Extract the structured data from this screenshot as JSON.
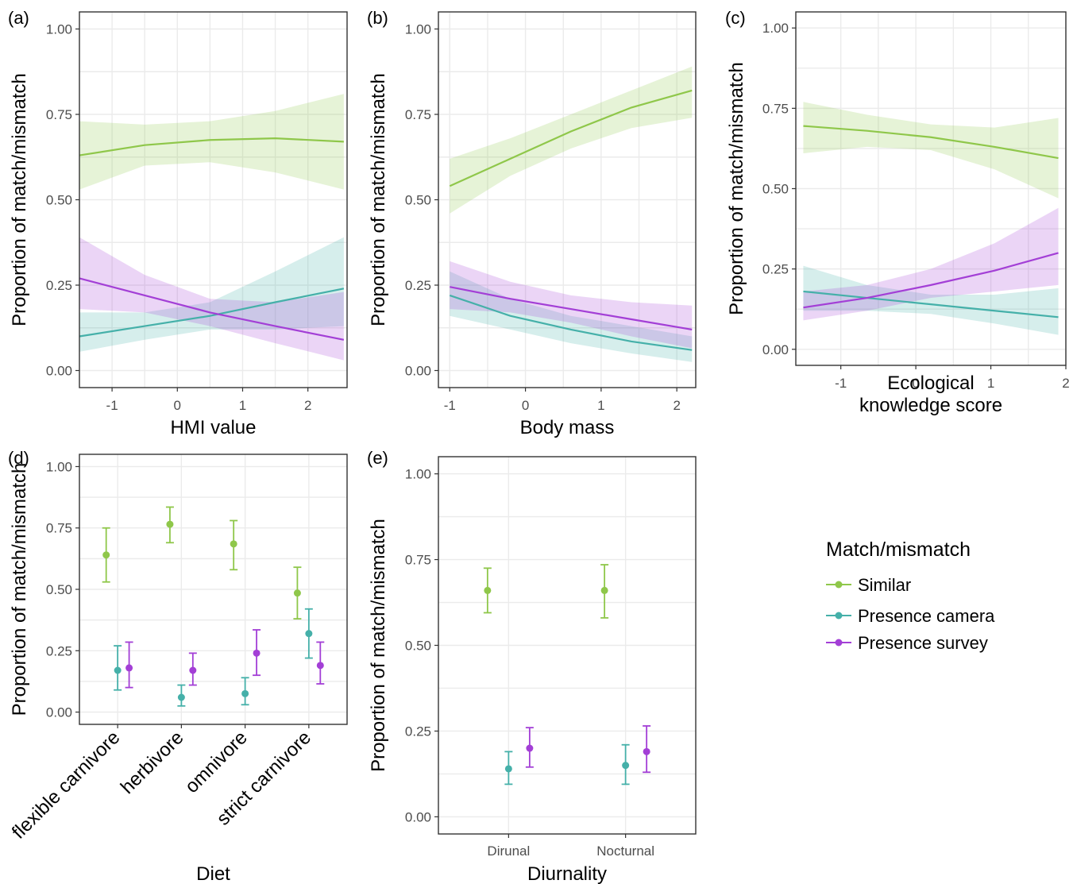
{
  "legend": {
    "title": "Match/mismatch",
    "placement": "right",
    "items": [
      {
        "label": "Similar",
        "color": "#8fc74a"
      },
      {
        "label": "Presence camera",
        "color": "#45b0a9"
      },
      {
        "label": "Presence survey",
        "color": "#a33fd6"
      }
    ]
  },
  "chart_data": [
    {
      "panel": "(a)",
      "type": "line",
      "xlabel": "HMI value",
      "ylabel": "Proportion of match/mismatch",
      "xlim": [
        -1.5,
        2.6
      ],
      "ylim": [
        0,
        1
      ],
      "xticks": [
        -1,
        0,
        1,
        2
      ],
      "xtick_labels": [
        "-1",
        "0",
        "1",
        "2"
      ],
      "yticks": [
        0,
        0.25,
        0.5,
        0.75,
        1
      ],
      "ytick_labels": [
        "0.00",
        "0.25",
        "0.50",
        "0.75",
        "1.00"
      ],
      "grid": true,
      "series": [
        {
          "name": "Similar",
          "color": "#8fc74a",
          "x": [
            -1.5,
            -0.5,
            0.5,
            1.5,
            2.55
          ],
          "y": [
            0.63,
            0.66,
            0.675,
            0.68,
            0.67
          ],
          "lower": [
            0.53,
            0.6,
            0.61,
            0.58,
            0.53
          ],
          "upper": [
            0.73,
            0.72,
            0.73,
            0.76,
            0.81
          ]
        },
        {
          "name": "Presence camera",
          "color": "#45b0a9",
          "x": [
            -1.5,
            -0.5,
            0.5,
            1.5,
            2.55
          ],
          "y": [
            0.1,
            0.13,
            0.16,
            0.2,
            0.24
          ],
          "lower": [
            0.055,
            0.09,
            0.12,
            0.12,
            0.13
          ],
          "upper": [
            0.17,
            0.17,
            0.2,
            0.29,
            0.39
          ]
        },
        {
          "name": "Presence survey",
          "color": "#a33fd6",
          "x": [
            -1.5,
            -0.5,
            0.5,
            1.5,
            2.55
          ],
          "y": [
            0.27,
            0.22,
            0.17,
            0.13,
            0.09
          ],
          "lower": [
            0.18,
            0.17,
            0.13,
            0.08,
            0.03
          ],
          "upper": [
            0.39,
            0.28,
            0.21,
            0.2,
            0.23
          ]
        }
      ]
    },
    {
      "panel": "(b)",
      "type": "line",
      "xlabel": "Body mass",
      "ylabel": "Proportion of match/mismatch",
      "xlim": [
        -1.15,
        2.25
      ],
      "ylim": [
        0,
        1
      ],
      "xticks": [
        -1,
        0,
        1,
        2
      ],
      "xtick_labels": [
        "-1",
        "0",
        "1",
        "2"
      ],
      "yticks": [
        0,
        0.25,
        0.5,
        0.75,
        1
      ],
      "ytick_labels": [
        "0.00",
        "0.25",
        "0.50",
        "0.75",
        "1.00"
      ],
      "grid": true,
      "series": [
        {
          "name": "Similar",
          "color": "#8fc74a",
          "x": [
            -1,
            -0.2,
            0.6,
            1.4,
            2.2
          ],
          "y": [
            0.54,
            0.62,
            0.7,
            0.77,
            0.82
          ],
          "lower": [
            0.46,
            0.57,
            0.65,
            0.71,
            0.74
          ],
          "upper": [
            0.62,
            0.68,
            0.75,
            0.82,
            0.89
          ]
        },
        {
          "name": "Presence camera",
          "color": "#45b0a9",
          "x": [
            -1,
            -0.2,
            0.6,
            1.4,
            2.2
          ],
          "y": [
            0.22,
            0.16,
            0.12,
            0.085,
            0.06
          ],
          "lower": [
            0.16,
            0.12,
            0.08,
            0.05,
            0.025
          ],
          "upper": [
            0.29,
            0.21,
            0.16,
            0.13,
            0.1
          ]
        },
        {
          "name": "Presence survey",
          "color": "#a33fd6",
          "x": [
            -1,
            -0.2,
            0.6,
            1.4,
            2.2
          ],
          "y": [
            0.245,
            0.21,
            0.18,
            0.15,
            0.12
          ],
          "lower": [
            0.18,
            0.17,
            0.14,
            0.1,
            0.065
          ],
          "upper": [
            0.32,
            0.26,
            0.22,
            0.2,
            0.19
          ]
        }
      ]
    },
    {
      "panel": "(c)",
      "type": "line",
      "xlabel": "Ecological\nknowledge score",
      "ylabel": "Proportion of match/mismatch",
      "xlim": [
        -1.6,
        2.0
      ],
      "ylim": [
        0,
        1
      ],
      "xticks": [
        -1,
        0,
        1,
        2
      ],
      "xtick_labels": [
        "-1",
        "0",
        "1",
        "2"
      ],
      "yticks": [
        0,
        0.25,
        0.5,
        0.75,
        1
      ],
      "ytick_labels": [
        "0.00",
        "0.25",
        "0.50",
        "0.75",
        "1.00"
      ],
      "grid": true,
      "series": [
        {
          "name": "Similar",
          "color": "#8fc74a",
          "x": [
            -1.5,
            -0.65,
            0.2,
            1.05,
            1.9
          ],
          "y": [
            0.695,
            0.68,
            0.66,
            0.63,
            0.595
          ],
          "lower": [
            0.61,
            0.63,
            0.62,
            0.56,
            0.47
          ],
          "upper": [
            0.77,
            0.73,
            0.7,
            0.69,
            0.72
          ]
        },
        {
          "name": "Presence camera",
          "color": "#45b0a9",
          "x": [
            -1.5,
            -0.65,
            0.2,
            1.05,
            1.9
          ],
          "y": [
            0.18,
            0.16,
            0.14,
            0.12,
            0.1
          ],
          "lower": [
            0.12,
            0.12,
            0.11,
            0.08,
            0.045
          ],
          "upper": [
            0.26,
            0.2,
            0.17,
            0.17,
            0.19
          ]
        },
        {
          "name": "Presence survey",
          "color": "#a33fd6",
          "x": [
            -1.5,
            -0.65,
            0.2,
            1.05,
            1.9
          ],
          "y": [
            0.13,
            0.16,
            0.2,
            0.245,
            0.3
          ],
          "lower": [
            0.09,
            0.12,
            0.16,
            0.18,
            0.2
          ],
          "upper": [
            0.18,
            0.2,
            0.25,
            0.33,
            0.44
          ]
        }
      ]
    },
    {
      "panel": "(d)",
      "type": "scatter",
      "xlabel": "Diet",
      "ylabel": "Proportion of match/mismatch",
      "categories": [
        "flexible carnivore",
        "herbivore",
        "omnivore",
        "strict carnivore"
      ],
      "ylim": [
        0,
        1
      ],
      "yticks": [
        0,
        0.25,
        0.5,
        0.75,
        1
      ],
      "ytick_labels": [
        "0.00",
        "0.25",
        "0.50",
        "0.75",
        "1.00"
      ],
      "grid": true,
      "series": [
        {
          "name": "Similar",
          "color": "#8fc74a",
          "values": [
            0.64,
            0.765,
            0.685,
            0.485
          ],
          "lower": [
            0.53,
            0.69,
            0.58,
            0.38
          ],
          "upper": [
            0.75,
            0.835,
            0.78,
            0.59
          ]
        },
        {
          "name": "Presence camera",
          "color": "#45b0a9",
          "values": [
            0.17,
            0.06,
            0.075,
            0.32
          ],
          "lower": [
            0.09,
            0.025,
            0.03,
            0.22
          ],
          "upper": [
            0.27,
            0.11,
            0.14,
            0.42
          ]
        },
        {
          "name": "Presence survey",
          "color": "#a33fd6",
          "values": [
            0.18,
            0.17,
            0.24,
            0.19
          ],
          "lower": [
            0.1,
            0.11,
            0.15,
            0.115
          ],
          "upper": [
            0.285,
            0.24,
            0.335,
            0.285
          ]
        }
      ]
    },
    {
      "panel": "(e)",
      "type": "scatter",
      "xlabel": "Diurnality",
      "ylabel": "Proportion of match/mismatch",
      "categories": [
        "Dirunal",
        "Nocturnal"
      ],
      "ylim": [
        0,
        1
      ],
      "yticks": [
        0,
        0.25,
        0.5,
        0.75,
        1
      ],
      "ytick_labels": [
        "0.00",
        "0.25",
        "0.50",
        "0.75",
        "1.00"
      ],
      "grid": true,
      "series": [
        {
          "name": "Similar",
          "color": "#8fc74a",
          "values": [
            0.66,
            0.66
          ],
          "lower": [
            0.595,
            0.58
          ],
          "upper": [
            0.725,
            0.735
          ]
        },
        {
          "name": "Presence camera",
          "color": "#45b0a9",
          "values": [
            0.14,
            0.15
          ],
          "lower": [
            0.095,
            0.095
          ],
          "upper": [
            0.19,
            0.21
          ]
        },
        {
          "name": "Presence survey",
          "color": "#a33fd6",
          "values": [
            0.2,
            0.19
          ],
          "lower": [
            0.145,
            0.13
          ],
          "upper": [
            0.26,
            0.265
          ]
        }
      ]
    }
  ]
}
